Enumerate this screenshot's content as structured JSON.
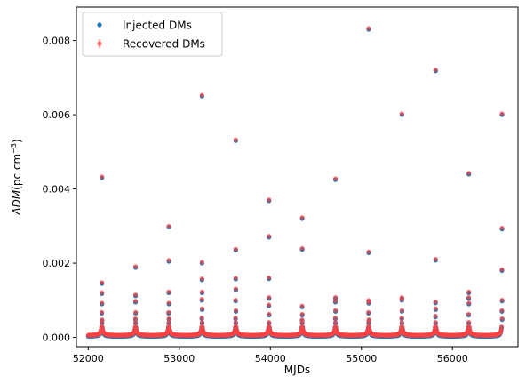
{
  "chart_data": {
    "type": "scatter",
    "title": "",
    "xlabel": "MJDs",
    "ylabel_math": "ΔDM",
    "ylabel_units": "(pc cm",
    "ylabel_exp": "−3",
    "ylabel_close": ")",
    "xlim": [
      51870,
      56720
    ],
    "ylim": [
      -0.00025,
      0.0089
    ],
    "xticks": [
      52000,
      53000,
      54000,
      55000,
      56000
    ],
    "yticks": [
      0.0,
      0.002,
      0.004,
      0.006,
      0.008
    ],
    "ytick_labels": [
      "0.000",
      "0.002",
      "0.004",
      "0.006",
      "0.008"
    ],
    "grid": false,
    "legend_position": "top-left",
    "series": [
      {
        "name": "Injected DMs",
        "color": "#1f77b4",
        "marker": "dot"
      },
      {
        "name": "Recovered DMs",
        "color": "#ff4040",
        "marker": "dot-errorbar"
      }
    ],
    "data_generation": {
      "x_start": 52000,
      "x_end": 56540,
      "x_step": 5,
      "baseline": 3e-05,
      "period_days": 365.25,
      "peaks": [
        {
          "x": 52150,
          "spikes": [
            0.0043,
            0.00145,
            0.00118,
            0.0009,
            0.00065,
            0.00045
          ]
        },
        {
          "x": 52520,
          "spikes": [
            0.00188,
            0.00112,
            0.00095,
            0.00065,
            0.00048
          ]
        },
        {
          "x": 52885,
          "spikes": [
            0.00297,
            0.00205,
            0.0012,
            0.0009,
            0.00065,
            0.00048
          ]
        },
        {
          "x": 53250,
          "spikes": [
            0.0065,
            0.002,
            0.00155,
            0.0012,
            0.001,
            0.00075,
            0.0005
          ]
        },
        {
          "x": 53620,
          "spikes": [
            0.0053,
            0.00235,
            0.00157,
            0.00128,
            0.00098,
            0.0007,
            0.0005
          ]
        },
        {
          "x": 53985,
          "spikes": [
            0.00368,
            0.0027,
            0.00158,
            0.00105,
            0.00085,
            0.0006
          ]
        },
        {
          "x": 54350,
          "spikes": [
            0.0032,
            0.00237,
            0.00082,
            0.0006,
            0.00045
          ]
        },
        {
          "x": 54715,
          "spikes": [
            0.00425,
            0.00105,
            0.00095,
            0.0007,
            0.0005
          ]
        },
        {
          "x": 55080,
          "spikes": [
            0.0083,
            0.00228,
            0.00097,
            0.00092,
            0.00065,
            0.00045
          ]
        },
        {
          "x": 55445,
          "spikes": [
            0.006,
            0.00105,
            0.001,
            0.0007,
            0.0005
          ]
        },
        {
          "x": 55815,
          "spikes": [
            0.00718,
            0.00208,
            0.00093,
            0.00075,
            0.00055
          ]
        },
        {
          "x": 56180,
          "spikes": [
            0.0044,
            0.0012,
            0.00105,
            0.0009,
            0.0006
          ]
        },
        {
          "x": 56545,
          "spikes": [
            0.006,
            0.00292,
            0.0018,
            0.00098,
            0.0007,
            0.00048
          ]
        }
      ]
    }
  }
}
